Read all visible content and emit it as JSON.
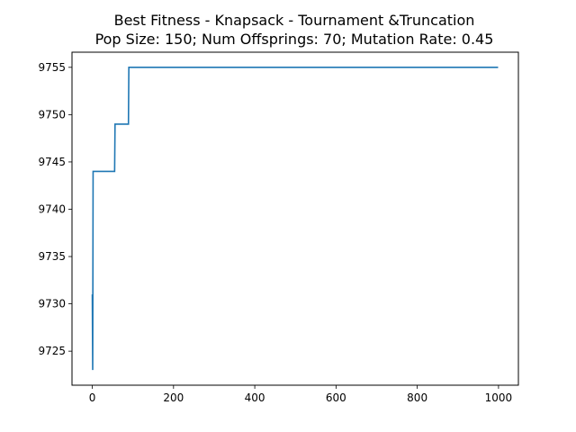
{
  "chart_data": {
    "type": "line",
    "title": "Best Fitness - Knapsack - Tournament &Truncation",
    "subtitle": "Pop Size: 150; Num Offsprings: 70; Mutation Rate: 0.45",
    "xlabel": "",
    "ylabel": "",
    "xlim": [
      -49.95,
      1048.95
    ],
    "ylim": [
      9721.4,
      9756.6
    ],
    "grid": false,
    "x_ticks": [
      0,
      200,
      400,
      600,
      800,
      1000
    ],
    "y_ticks": [
      9725,
      9730,
      9735,
      9740,
      9745,
      9750,
      9755
    ],
    "series": [
      {
        "color": "#1f77b4",
        "points": [
          [
            0,
            9731
          ],
          [
            1,
            9723
          ],
          [
            2,
            9744
          ],
          [
            55,
            9744
          ],
          [
            56,
            9749
          ],
          [
            89,
            9749
          ],
          [
            90,
            9755
          ],
          [
            999,
            9755
          ]
        ]
      }
    ]
  }
}
